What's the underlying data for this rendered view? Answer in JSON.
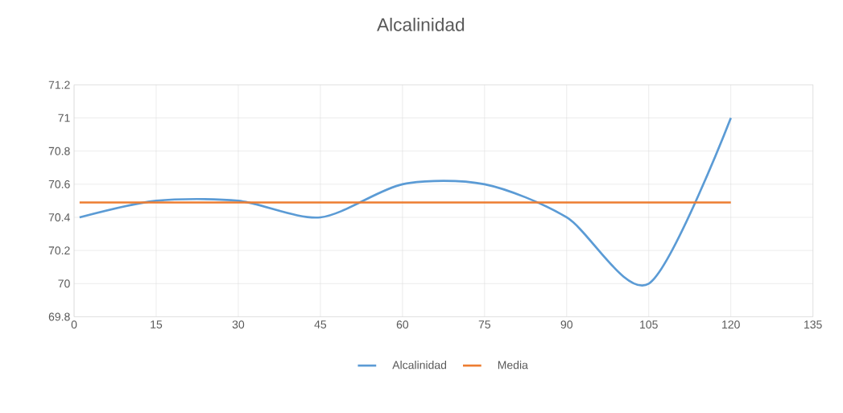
{
  "chart_data": {
    "type": "line",
    "title": "Alcalinidad",
    "xlim": [
      0,
      135
    ],
    "xticks": [
      0,
      15,
      30,
      45,
      60,
      75,
      90,
      105,
      120,
      135
    ],
    "ylim": [
      69.8,
      71.2
    ],
    "yticks": [
      69.8,
      70,
      70.2,
      70.4,
      70.6,
      70.8,
      71,
      71.2
    ],
    "grid": true,
    "legend": "bottom",
    "series": [
      {
        "name": "Alcalinidad",
        "color": "#5b9bd5",
        "x": [
          1,
          15,
          30,
          45,
          60,
          75,
          90,
          105,
          120
        ],
        "values": [
          70.4,
          70.5,
          70.5,
          70.4,
          70.6,
          70.6,
          70.4,
          70.0,
          71.0
        ]
      },
      {
        "name": "Media",
        "color": "#ed7d31",
        "x": [
          1,
          120
        ],
        "values": [
          70.49,
          70.49
        ]
      }
    ]
  }
}
